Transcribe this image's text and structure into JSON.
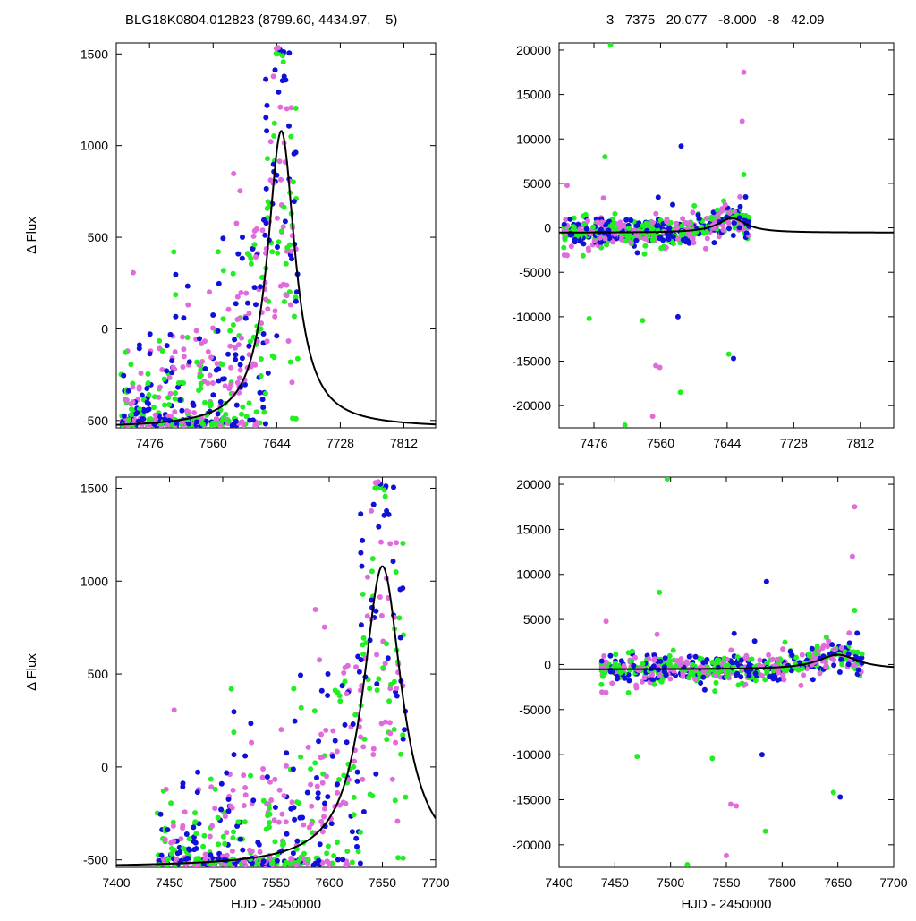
{
  "header": {
    "left": "BLG18K0804.012823 (8799.60, 4434.97,    5)",
    "right": "3   7375   20.077   -8.000   -8   42.09"
  },
  "colors": {
    "magenta": "#e06cdc",
    "green": "#22ee22",
    "blue": "#1010d8",
    "model": "#000000"
  },
  "model": {
    "t0": 7650,
    "tE": 22,
    "amp": 1620,
    "base": -540
  },
  "chart_data": [
    {
      "type": "scatter",
      "panel": "top-left",
      "title": "",
      "xlabel": "",
      "ylabel": "Δ Flux",
      "xlim": [
        7432,
        7854
      ],
      "ylim": [
        -540,
        1560
      ],
      "xticks": [
        7476,
        7560,
        7644,
        7728,
        7812
      ],
      "yticks": [
        -500,
        0,
        500,
        1000,
        1500
      ],
      "data_xrange": [
        7438,
        7672
      ],
      "series": [
        {
          "color_key": "magenta"
        },
        {
          "color_key": "green"
        },
        {
          "color_key": "blue"
        },
        {
          "color_key": "model",
          "kind": "line"
        }
      ]
    },
    {
      "type": "scatter",
      "panel": "top-right",
      "title": "",
      "xlabel": "",
      "ylabel": "",
      "xlim": [
        7432,
        7854
      ],
      "ylim": [
        -22500,
        20800
      ],
      "xticks": [
        7476,
        7560,
        7644,
        7728,
        7812
      ],
      "yticks": [
        -20000,
        -15000,
        -10000,
        -5000,
        0,
        5000,
        10000,
        15000,
        20000
      ],
      "data_xrange": [
        7438,
        7672
      ],
      "outliers": [
        {
          "x": 7497,
          "y": 20600,
          "c": "green"
        },
        {
          "x": 7665,
          "y": 17500,
          "c": "magenta"
        },
        {
          "x": 7663,
          "y": 12000,
          "c": "magenta"
        },
        {
          "x": 7586,
          "y": 9200,
          "c": "blue"
        },
        {
          "x": 7665,
          "y": 6000,
          "c": "green"
        },
        {
          "x": 7490,
          "y": 8000,
          "c": "green"
        },
        {
          "x": 7582,
          "y": -10000,
          "c": "blue"
        },
        {
          "x": 7470,
          "y": -10200,
          "c": "green"
        },
        {
          "x": 7554,
          "y": -15500,
          "c": "magenta"
        },
        {
          "x": 7559,
          "y": -15700,
          "c": "magenta"
        },
        {
          "x": 7585,
          "y": -18500,
          "c": "green"
        },
        {
          "x": 7646,
          "y": -14200,
          "c": "green"
        },
        {
          "x": 7652,
          "y": -14700,
          "c": "blue"
        },
        {
          "x": 7550,
          "y": -21200,
          "c": "magenta"
        },
        {
          "x": 7515,
          "y": -22200,
          "c": "green"
        }
      ]
    },
    {
      "type": "scatter",
      "panel": "bottom-left",
      "title": "",
      "xlabel": "HJD - 2450000",
      "ylabel": "Δ Flux",
      "xlim": [
        7400,
        7700
      ],
      "ylim": [
        -540,
        1560
      ],
      "xticks": [
        7400,
        7450,
        7500,
        7550,
        7600,
        7650,
        7700
      ],
      "yticks": [
        -500,
        0,
        500,
        1000,
        1500
      ],
      "data_xrange": [
        7438,
        7672
      ]
    },
    {
      "type": "scatter",
      "panel": "bottom-right",
      "title": "",
      "xlabel": "HJD - 2450000",
      "ylabel": "",
      "xlim": [
        7400,
        7700
      ],
      "ylim": [
        -22500,
        20800
      ],
      "xticks": [
        7400,
        7450,
        7500,
        7550,
        7600,
        7650,
        7700
      ],
      "yticks": [
        -20000,
        -15000,
        -10000,
        -5000,
        0,
        5000,
        10000,
        15000,
        20000
      ],
      "data_xrange": [
        7438,
        7672
      ]
    }
  ]
}
